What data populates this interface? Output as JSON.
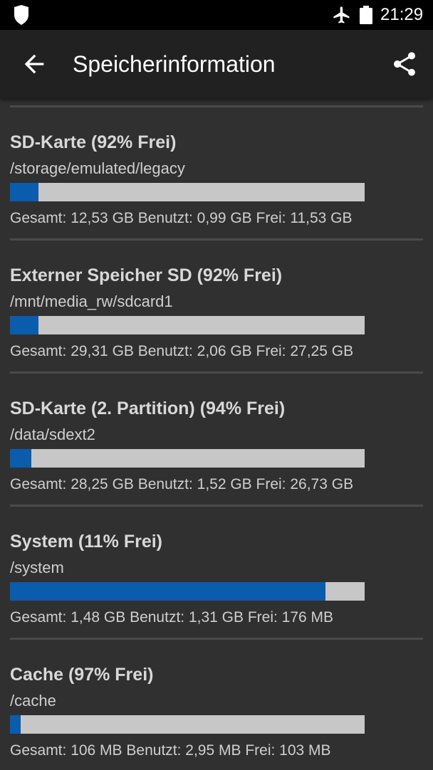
{
  "status_bar": {
    "time": "21:29",
    "icons": [
      "shield-icon",
      "airplane-mode-icon",
      "battery-icon"
    ]
  },
  "app_bar": {
    "title": "Speicherinformation",
    "back_icon": "arrow-back-icon",
    "share_icon": "share-icon"
  },
  "colors": {
    "used": "#0a5cad",
    "free": "#c7c7c7",
    "background": "#303030",
    "app_bar": "#212121"
  },
  "storage": [
    {
      "name": "SD-Karte (92% Frei)",
      "path": "/storage/emulated/legacy",
      "used_fraction": 0.08,
      "details": "Gesamt: 12,53 GB Benutzt: 0,99 GB Frei: 11,53 GB"
    },
    {
      "name": "Externer Speicher SD (92% Frei)",
      "path": "/mnt/media_rw/sdcard1",
      "used_fraction": 0.08,
      "details": "Gesamt: 29,31 GB Benutzt: 2,06 GB Frei: 27,25 GB"
    },
    {
      "name": "SD-Karte (2. Partition) (94% Frei)",
      "path": "/data/sdext2",
      "used_fraction": 0.06,
      "details": "Gesamt: 28,25 GB Benutzt: 1,52 GB Frei: 26,73 GB"
    },
    {
      "name": "System (11% Frei)",
      "path": "/system",
      "used_fraction": 0.89,
      "details": "Gesamt: 1,48 GB Benutzt: 1,31 GB Frei: 176 MB"
    },
    {
      "name": "Cache (97% Frei)",
      "path": "/cache",
      "used_fraction": 0.03,
      "details": "Gesamt: 106 MB Benutzt: 2,95 MB Frei: 103 MB"
    }
  ]
}
